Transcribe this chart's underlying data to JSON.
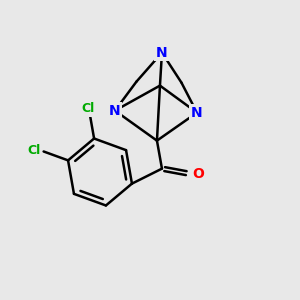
{
  "background_color": "#e8e8e8",
  "atom_colors": {
    "N": "#0000ff",
    "O": "#ff0000",
    "Cl": "#00aa00",
    "C": "#000000"
  },
  "figsize": [
    3.0,
    3.0
  ],
  "dpi": 100
}
